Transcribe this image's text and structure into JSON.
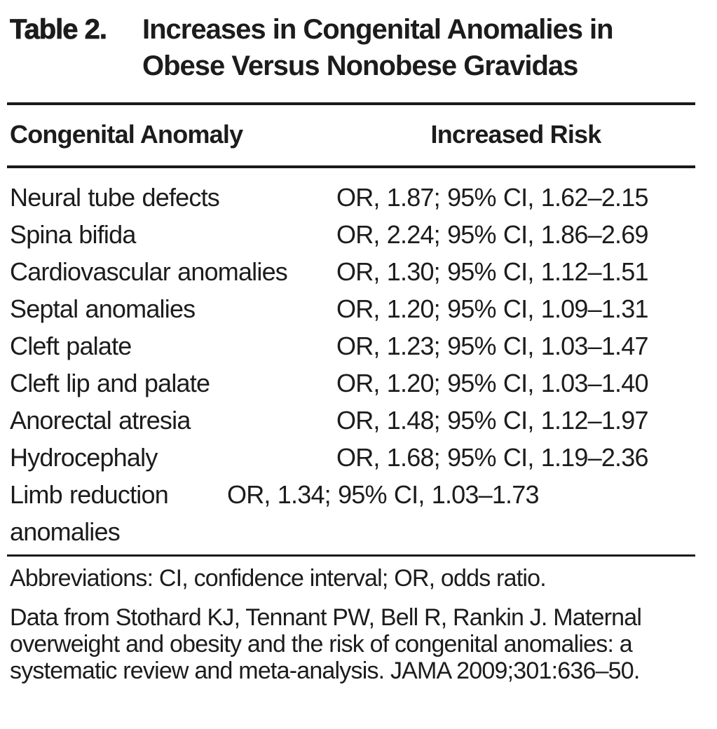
{
  "title": {
    "label": "Table 2.",
    "text": "Increases in Congenital Anomalies in Obese Versus Nonobese Gravidas"
  },
  "table": {
    "columns": {
      "anomaly": "Congenital Anomaly",
      "risk": "Increased Risk"
    },
    "rows": [
      {
        "anomaly": "Neural tube defects",
        "risk": "OR, 1.87; 95% CI, 1.62–2.15"
      },
      {
        "anomaly": "Spina bifida",
        "risk": "OR, 2.24; 95% CI, 1.86–2.69"
      },
      {
        "anomaly": "Cardiovascular anomalies",
        "risk": "OR, 1.30; 95% CI, 1.12–1.51"
      },
      {
        "anomaly": "Septal anomalies",
        "risk": "OR, 1.20; 95% CI, 1.09–1.31"
      },
      {
        "anomaly": "Cleft palate",
        "risk": "OR, 1.23; 95% CI, 1.03–1.47"
      },
      {
        "anomaly": "Cleft lip and palate",
        "risk": "OR, 1.20; 95% CI, 1.03–1.40"
      },
      {
        "anomaly": "Anorectal atresia",
        "risk": "OR, 1.48; 95% CI, 1.12–1.97"
      },
      {
        "anomaly": "Hydrocephaly",
        "risk": "OR, 1.68; 95% CI, 1.19–2.36"
      },
      {
        "anomaly": "Limb reduction anomalies",
        "risk": "OR, 1.34; 95% CI, 1.03–1.73"
      }
    ]
  },
  "footnotes": {
    "abbreviations": "Abbreviations: CI, confidence interval; OR, odds ratio.",
    "source": "Data from Stothard KJ, Tennant PW, Bell R, Rankin J. Maternal overweight and obesity and the risk of congenital anomalies: a systematic review and meta-analysis. JAMA 2009;301:636–50."
  },
  "colors": {
    "text": "#1c1c1c",
    "rule": "#1a1a1a",
    "background": "#ffffff"
  }
}
